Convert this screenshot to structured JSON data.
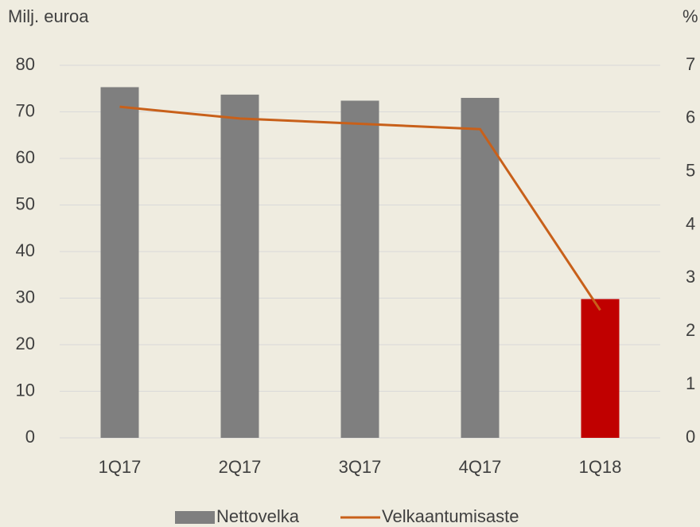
{
  "chart_data": {
    "type": "bar",
    "y_label": "Milj. euroa",
    "y2_label": "%",
    "categories": [
      "1Q17",
      "2Q17",
      "3Q17",
      "4Q17",
      "1Q18"
    ],
    "series": [
      {
        "name": "Nettovelka",
        "type": "bar",
        "color": "#7f7f7f",
        "colors": [
          "#7f7f7f",
          "#7f7f7f",
          "#7f7f7f",
          "#7f7f7f",
          "#c00000"
        ],
        "values": [
          75.3,
          73.7,
          72.4,
          73.0,
          29.8
        ]
      },
      {
        "name": "Velkaantumisaste",
        "type": "line",
        "axis": "y2",
        "color": "#c8601a",
        "values": [
          6.22,
          6.0,
          5.9,
          5.8,
          2.4
        ]
      }
    ],
    "ylim": [
      0,
      80
    ],
    "yticks": [
      0,
      10,
      20,
      30,
      40,
      50,
      60,
      70,
      80
    ],
    "y2lim": [
      0,
      7
    ],
    "y2ticks": [
      0,
      1,
      2,
      3,
      4,
      5,
      6,
      7
    ],
    "grid": true,
    "legend": "bottom"
  }
}
